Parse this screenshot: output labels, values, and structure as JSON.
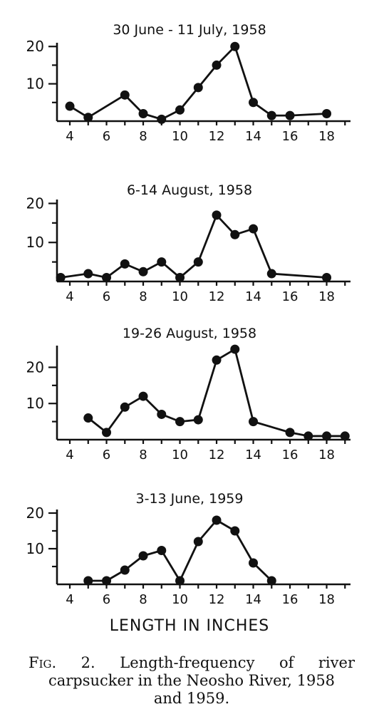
{
  "chart_data": [
    {
      "type": "line",
      "title": "30 June - 11 July, 1958",
      "x": [
        4,
        5,
        7,
        8,
        9,
        10,
        11,
        12,
        13,
        14,
        15,
        16,
        18
      ],
      "y": [
        4,
        1,
        7,
        2,
        0.5,
        3,
        9,
        15,
        20,
        5,
        1.5,
        1.5,
        2
      ],
      "xticks": [
        4,
        6,
        8,
        10,
        12,
        14,
        16,
        18
      ],
      "yticks": [
        10,
        20
      ],
      "xlim": [
        3.3,
        19.3
      ],
      "ylim": [
        0,
        21
      ]
    },
    {
      "type": "line",
      "title": "6-14 August, 1958",
      "x": [
        3.5,
        5,
        6,
        7,
        8,
        9,
        10,
        11,
        12,
        13,
        14,
        15,
        18
      ],
      "y": [
        1,
        2,
        1,
        4.5,
        2.5,
        5,
        1,
        5,
        17,
        12,
        13.5,
        2,
        1
      ],
      "xticks": [
        4,
        6,
        8,
        10,
        12,
        14,
        16,
        18
      ],
      "yticks": [
        10,
        20
      ],
      "xlim": [
        3.3,
        19.3
      ],
      "ylim": [
        0,
        21
      ]
    },
    {
      "type": "line",
      "title": "19-26 August, 1958",
      "x": [
        5,
        6,
        7,
        8,
        9,
        10,
        11,
        12,
        13,
        14,
        16,
        17,
        18,
        19
      ],
      "y": [
        6,
        2,
        9,
        12,
        7,
        5,
        5.5,
        22,
        25,
        5,
        2,
        1,
        1,
        1
      ],
      "xticks": [
        4,
        6,
        8,
        10,
        12,
        14,
        16,
        18
      ],
      "yticks": [
        10,
        20
      ],
      "xlim": [
        3.3,
        19.3
      ],
      "ylim": [
        0,
        26
      ]
    },
    {
      "type": "line",
      "title": "3-13 June, 1959",
      "x": [
        5,
        6,
        7,
        8,
        9,
        10,
        11,
        12,
        13,
        14,
        15
      ],
      "y": [
        1,
        1,
        4,
        8,
        9.5,
        1,
        12,
        18,
        15,
        6,
        1
      ],
      "xticks": [
        4,
        6,
        8,
        10,
        12,
        14,
        16,
        18
      ],
      "yticks": [
        10,
        20
      ],
      "xlim": [
        3.3,
        19.3
      ],
      "ylim": [
        0,
        21
      ]
    }
  ],
  "xlabel": "LENGTH IN INCHES",
  "caption": {
    "fig_label": "Fig. 2.",
    "line1_text": "Length-frequency of river",
    "line2": "carpsucker in the Neosho River, 1958",
    "line3": "and 1959."
  }
}
